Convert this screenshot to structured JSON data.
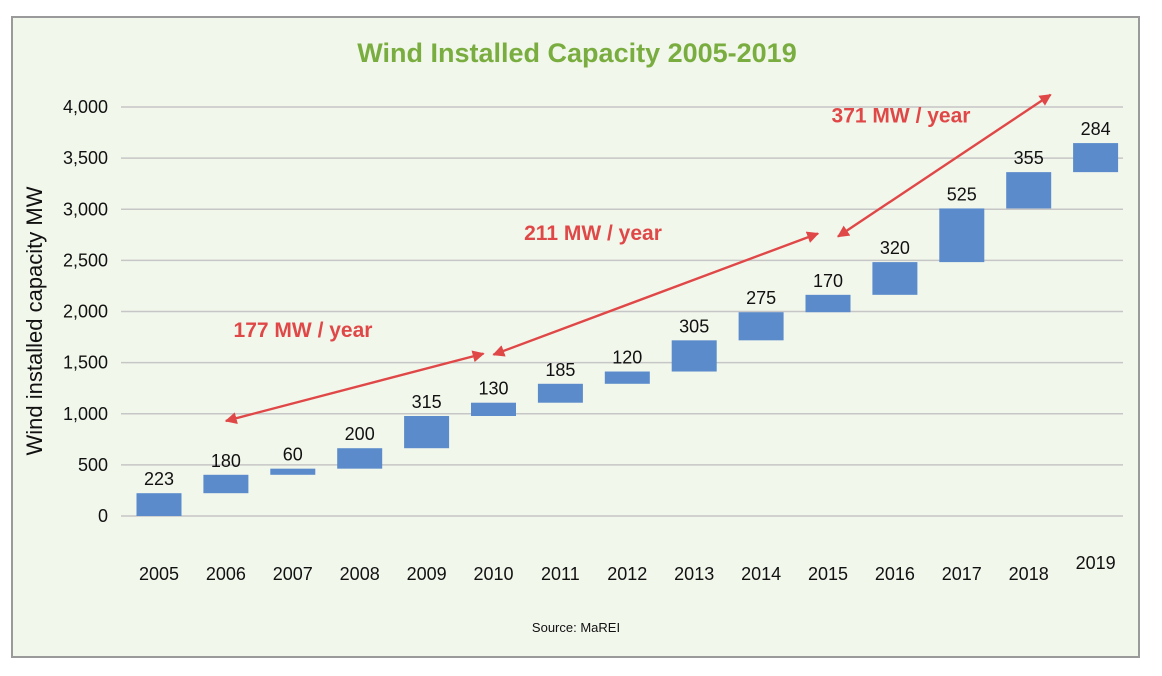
{
  "chart_data": {
    "type": "bar",
    "subtype": "waterfall",
    "title": "Wind Installed Capacity 2005-2019",
    "ylabel": "Wind installed capacity MW",
    "xlabel": "",
    "source": "Source: MaREI",
    "categories": [
      "2005",
      "2006",
      "2007",
      "2008",
      "2009",
      "2010",
      "2011",
      "2012",
      "2013",
      "2014",
      "2015",
      "2016",
      "2017",
      "2018",
      "2019"
    ],
    "values": [
      223,
      180,
      60,
      200,
      315,
      130,
      185,
      120,
      305,
      275,
      170,
      320,
      525,
      355,
      284
    ],
    "ylim": [
      0,
      4000
    ],
    "yticks": [
      0,
      500,
      1000,
      1500,
      2000,
      2500,
      3000,
      3500,
      4000
    ],
    "ytick_labels": [
      "0",
      "500",
      "1,000",
      "1,500",
      "2,000",
      "2,500",
      "3,000",
      "3,500",
      "4,000"
    ],
    "grid": true,
    "legend": "none",
    "annotations": [
      {
        "text": "177 MW / year",
        "from_year": "2006",
        "to_year": "2010"
      },
      {
        "text": "211 MW / year",
        "from_year": "2010",
        "to_year": "2015"
      },
      {
        "text": "371 MW / year",
        "from_year": "2015",
        "to_year": "2019"
      }
    ],
    "colors": {
      "bar": "#5b8bcb",
      "title": "#7aad3f",
      "annotation": "#e04848",
      "grid": "#c6c6c6",
      "background": "#f2f7ec"
    }
  }
}
